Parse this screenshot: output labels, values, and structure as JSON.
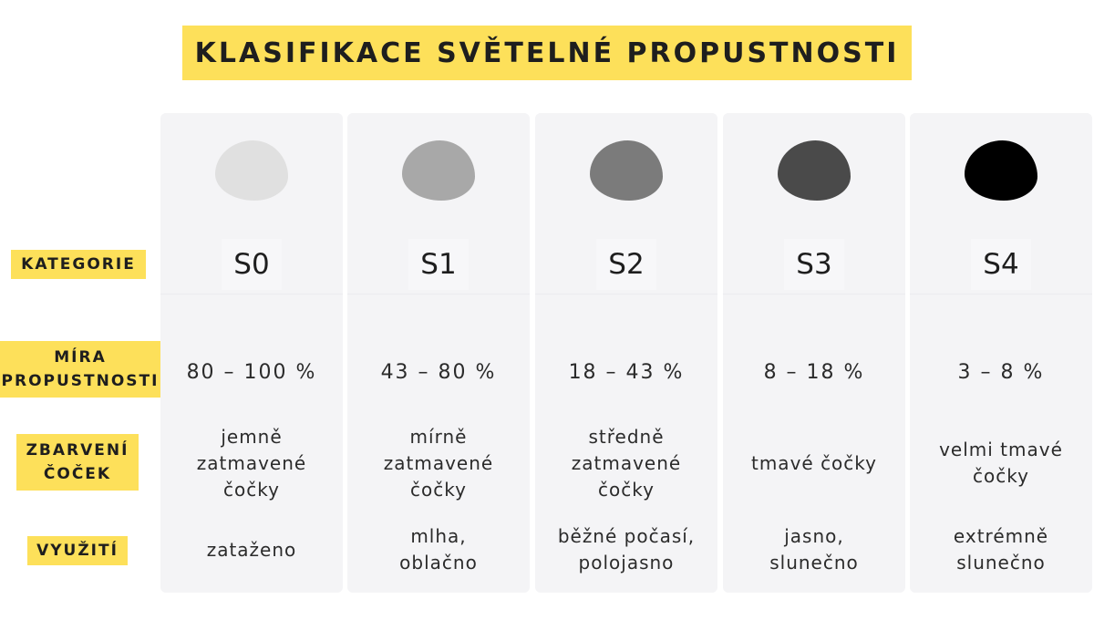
{
  "title": "KLASIFIKACE SVĚTELNÉ PROPUSTNOSTI",
  "row_labels": {
    "category": "KATEGORIE",
    "transmission": "MÍRA\nPROPUSTNOSTI",
    "tint": "ZBARVENÍ\nČOČEK",
    "usage": "VYUŽITÍ"
  },
  "colors": {
    "accent": "#fde05a",
    "column_bg": "#f4f4f6"
  },
  "columns": [
    {
      "lens_color": "#e0e0e0",
      "category": "S0",
      "transmission": "80 – 100 %",
      "tint": "jemně\nzatmavené\nčočky",
      "usage": "zataženo"
    },
    {
      "lens_color": "#a8a8a8",
      "category": "S1",
      "transmission": "43 – 80 %",
      "tint": "mírně\nzatmavené\nčočky",
      "usage": "mlha,\noblačno"
    },
    {
      "lens_color": "#7b7b7b",
      "category": "S2",
      "transmission": "18 – 43 %",
      "tint": "středně\nzatmavené\nčočky",
      "usage": "běžné počasí,\npolojasno"
    },
    {
      "lens_color": "#4a4a4a",
      "category": "S3",
      "transmission": "8 – 18 %",
      "tint": "tmavé čočky",
      "usage": "jasno,\nslunečno"
    },
    {
      "lens_color": "#000000",
      "category": "S4",
      "transmission": "3 – 8 %",
      "tint": "velmi tmavé\nčočky",
      "usage": "extrémně\nslunečno"
    }
  ]
}
